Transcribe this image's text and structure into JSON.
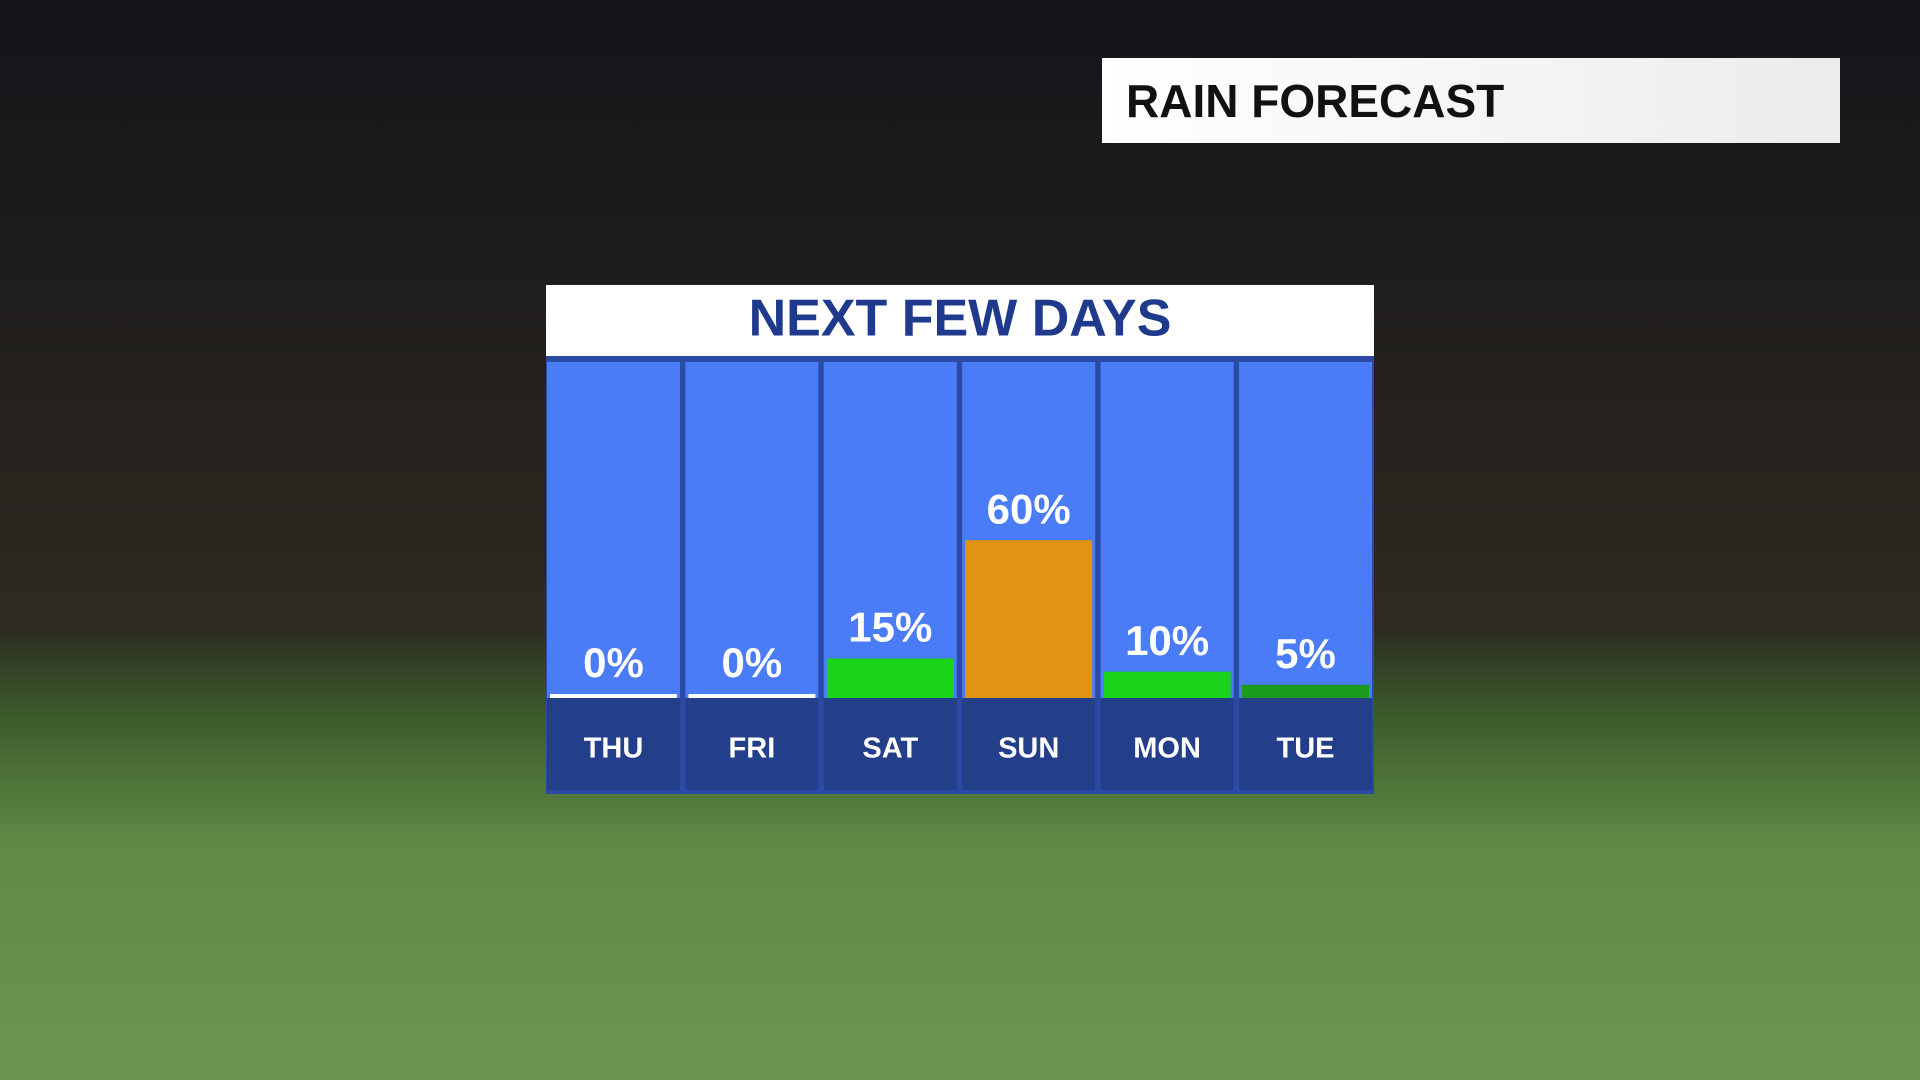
{
  "header": {
    "title": "RAIN FORECAST"
  },
  "chart_data": {
    "type": "bar",
    "title": "NEXT FEW DAYS",
    "categories": [
      "THU",
      "FRI",
      "SAT",
      "SUN",
      "MON",
      "TUE"
    ],
    "values": [
      0,
      0,
      15,
      60,
      10,
      5
    ],
    "value_labels": [
      "0%",
      "0%",
      "15%",
      "60%",
      "10%",
      "5%"
    ],
    "colors": [
      "#ffffff",
      "#ffffff",
      "#19d419",
      "#e09412",
      "#19d419",
      "#1c9c1c"
    ]
  }
}
